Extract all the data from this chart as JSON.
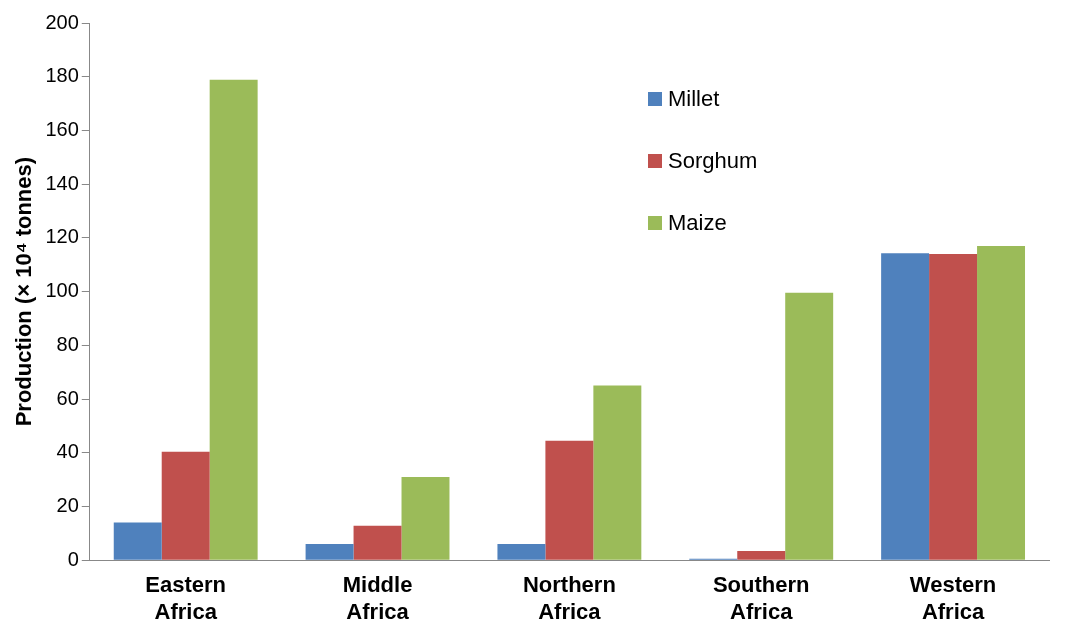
{
  "chart_data": {
    "type": "bar",
    "ylabel": "Production (× 10⁴ tonnes)",
    "categories": [
      "Eastern Africa",
      "Middle Africa",
      "Northern Africa",
      "Southern Africa",
      "Western Africa"
    ],
    "series": [
      {
        "name": "Millet",
        "color": "#4f81bd",
        "values": [
          14,
          6,
          6,
          0.5,
          114.3
        ]
      },
      {
        "name": "Sorghum",
        "color": "#c0504d",
        "values": [
          40.4,
          12.8,
          44.5,
          3.4,
          114
        ]
      },
      {
        "name": "Maize",
        "color": "#9bbb59",
        "values": [
          178.9,
          31,
          65,
          99.6,
          117
        ]
      }
    ],
    "ylim": [
      0,
      200
    ],
    "yticks": [
      0,
      20,
      40,
      60,
      80,
      100,
      120,
      140,
      160,
      180,
      200
    ],
    "grid": false,
    "legend": "top"
  }
}
